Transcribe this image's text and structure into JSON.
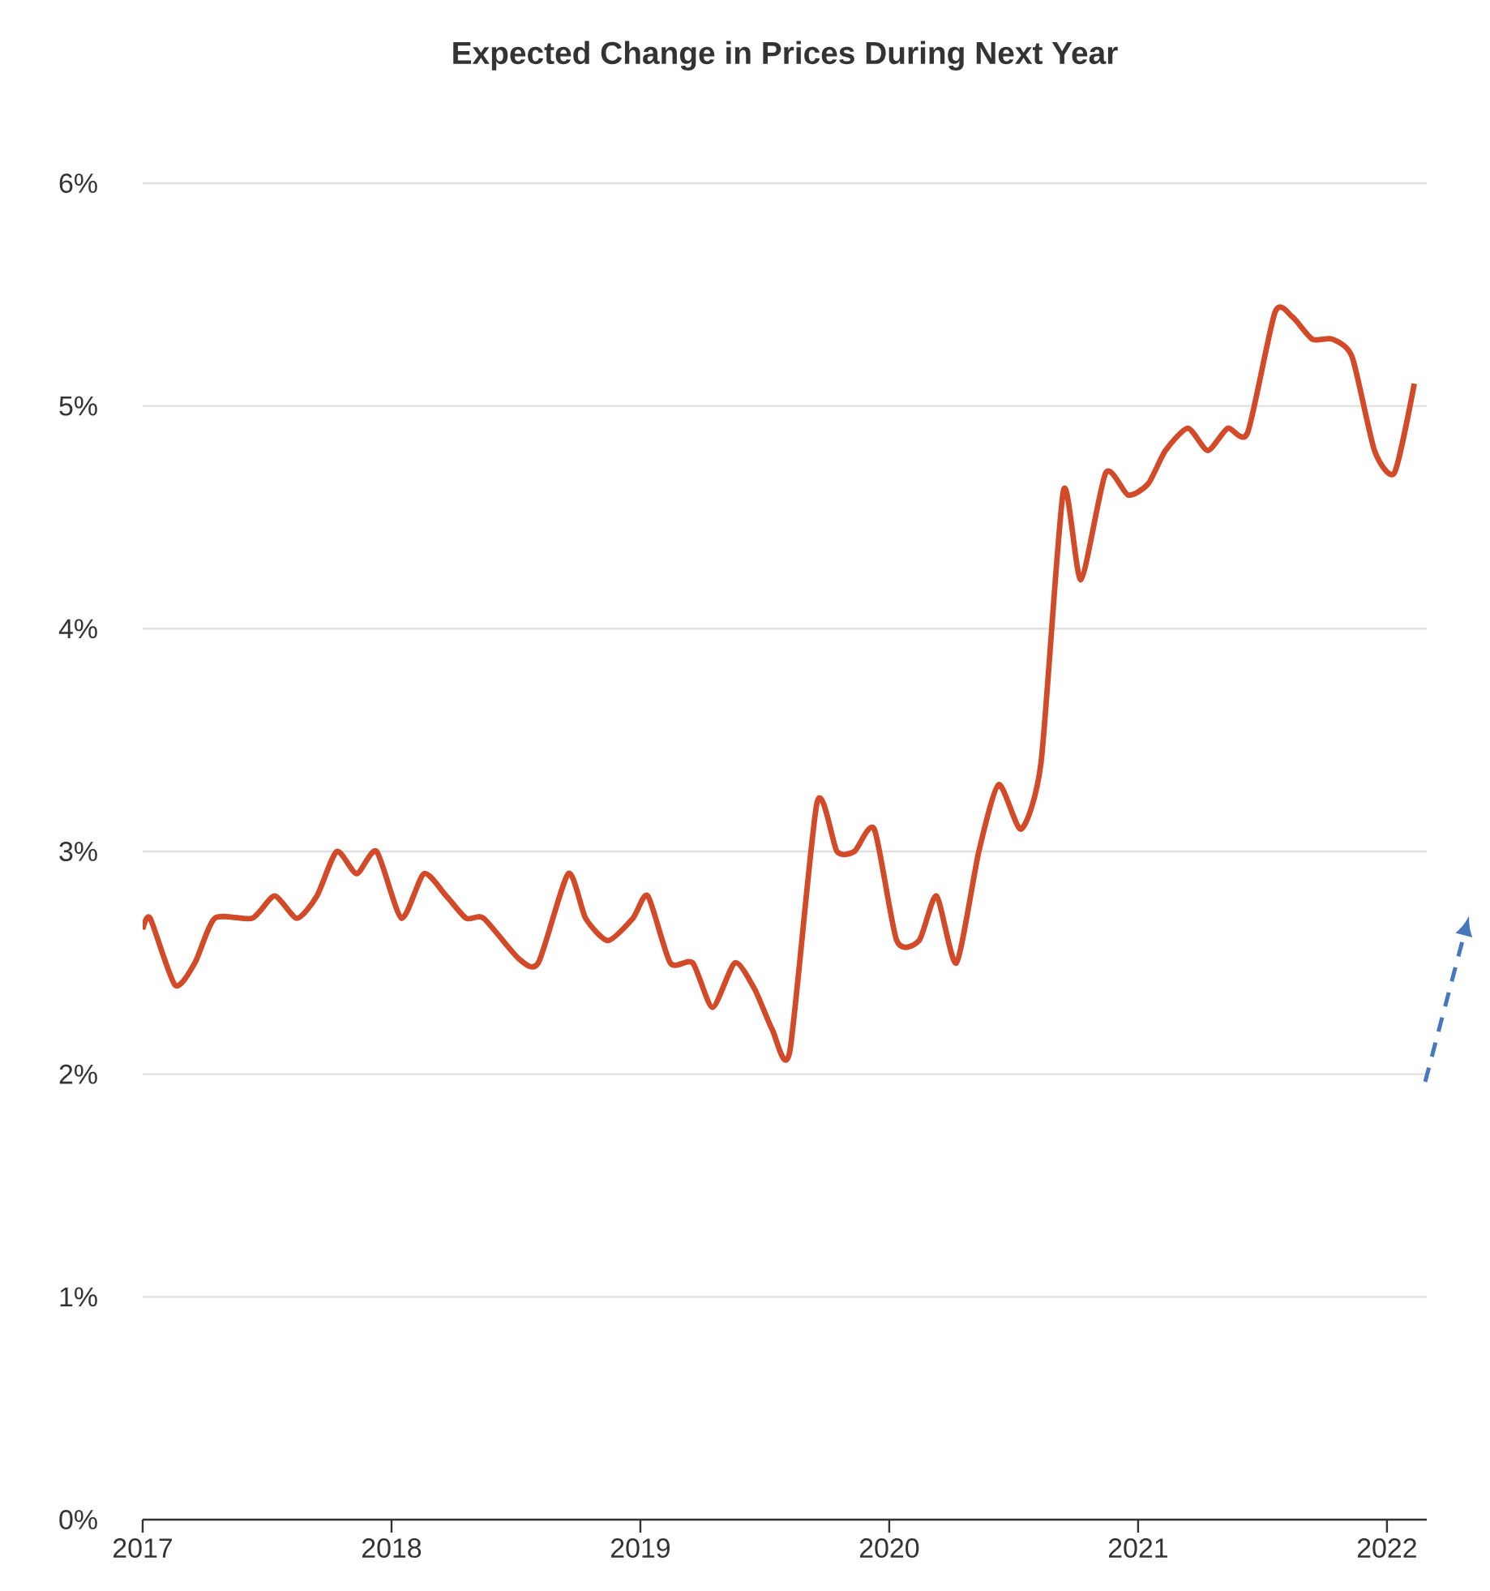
{
  "chart_data": {
    "type": "line",
    "title": "Expected Change in Prices During Next Year",
    "x": [
      2017.0,
      2017.03,
      2017.13,
      2017.21,
      2017.29,
      2017.44,
      2017.53,
      2017.62,
      2017.7,
      2017.78,
      2017.86,
      2017.94,
      2018.04,
      2018.13,
      2018.22,
      2018.3,
      2018.37,
      2018.51,
      2018.59,
      2018.71,
      2018.78,
      2018.87,
      2018.97,
      2019.03,
      2019.12,
      2019.21,
      2019.29,
      2019.38,
      2019.46,
      2019.53,
      2019.6,
      2019.71,
      2019.79,
      2019.86,
      2019.94,
      2020.03,
      2020.12,
      2020.19,
      2020.27,
      2020.36,
      2020.44,
      2020.53,
      2020.61,
      2020.7,
      2020.77,
      2020.87,
      2020.96,
      2021.04,
      2021.11,
      2021.2,
      2021.28,
      2021.36,
      2021.44,
      2021.55,
      2021.62,
      2021.7,
      2021.78,
      2021.86,
      2021.95,
      2022.03,
      2022.11
    ],
    "series": [
      {
        "color": "#d24a28",
        "values": [
          2.65,
          2.7,
          2.4,
          2.5,
          2.7,
          2.7,
          2.8,
          2.7,
          2.8,
          3.0,
          2.9,
          3.0,
          2.7,
          2.9,
          2.8,
          2.7,
          2.7,
          2.52,
          2.5,
          2.9,
          2.7,
          2.6,
          2.7,
          2.8,
          2.5,
          2.5,
          2.3,
          2.5,
          2.38,
          2.2,
          2.1,
          3.22,
          3.0,
          3.0,
          3.1,
          2.6,
          2.6,
          2.8,
          2.5,
          3.0,
          3.3,
          3.1,
          3.4,
          4.62,
          4.22,
          4.7,
          4.6,
          4.65,
          4.8,
          4.9,
          4.8,
          4.9,
          4.88,
          5.42,
          5.4,
          5.3,
          5.3,
          5.22,
          4.8,
          4.7,
          5.1
        ]
      }
    ],
    "xlim": [
      2017,
      2022.16
    ],
    "ylim": [
      0,
      6
    ],
    "xticks": [
      2017,
      2018,
      2019,
      2020,
      2021,
      2022
    ],
    "yticks": [
      {
        "value": 0,
        "label": "0%"
      },
      {
        "value": 1,
        "label": "1%"
      },
      {
        "value": 2,
        "label": "2%"
      },
      {
        "value": 3,
        "label": "3%"
      },
      {
        "value": 4,
        "label": "4%"
      },
      {
        "value": 5,
        "label": "5%"
      },
      {
        "value": 6,
        "label": "6%"
      }
    ],
    "grid": "y",
    "line_style": "solid",
    "marker": "none"
  }
}
